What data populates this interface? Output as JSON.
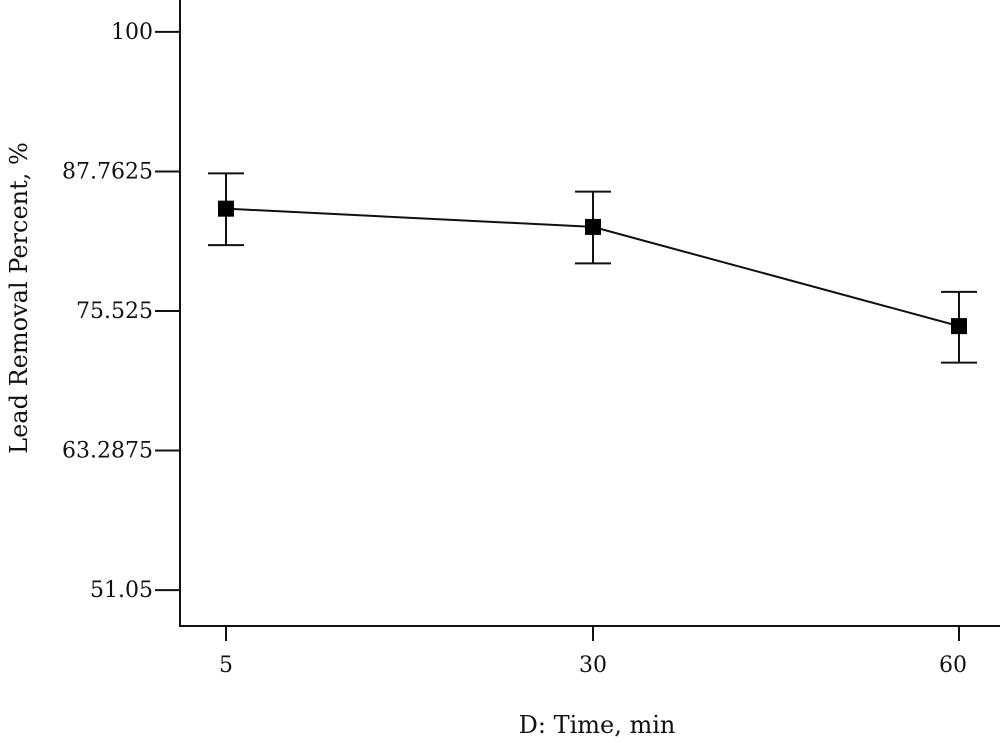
{
  "chart_data": {
    "type": "line",
    "title": "",
    "xlabel": "D: Time, min",
    "ylabel": "Lead Removal Percent, %",
    "x_ticks": [
      "5",
      "30",
      "60"
    ],
    "y_ticks": [
      "100",
      "87.7625",
      "75.525",
      "63.2875",
      "51.05"
    ],
    "y_tick_values": [
      100,
      87.7625,
      75.525,
      63.2875,
      51.05
    ],
    "ylim": [
      47.9,
      102.8
    ],
    "grid": false,
    "series": [
      {
        "x": [
          "5",
          "30",
          "60"
        ],
        "values": [
          84.5,
          82.9,
          74.2
        ],
        "error_low": [
          81.3,
          79.7,
          71.0
        ],
        "error_high": [
          87.6,
          86.0,
          77.2
        ]
      }
    ],
    "colors": {
      "line": "#111111",
      "marker": "#000000"
    }
  }
}
